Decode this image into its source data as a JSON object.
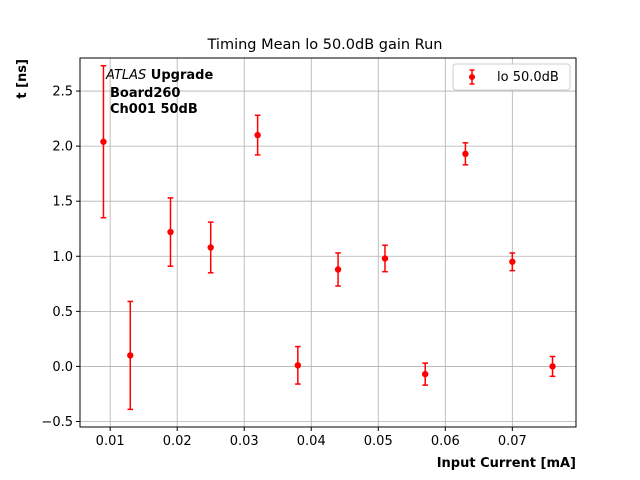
{
  "chart_data": {
    "type": "scatter",
    "title": "Timing Mean lo 50.0dB gain Run",
    "xlabel": "Input Current [mA]",
    "ylabel": "t [ns]",
    "xlim": [
      0.0055,
      0.0795
    ],
    "ylim": [
      -0.55,
      2.8
    ],
    "xticks": [
      0.01,
      0.02,
      0.03,
      0.04,
      0.05,
      0.06,
      0.07
    ],
    "xtick_labels": [
      "0.01",
      "0.02",
      "0.03",
      "0.04",
      "0.05",
      "0.06",
      "0.07"
    ],
    "yticks": [
      -0.5,
      0.0,
      0.5,
      1.0,
      1.5,
      2.0,
      2.5
    ],
    "ytick_labels": [
      "−0.5",
      "0.0",
      "0.5",
      "1.0",
      "1.5",
      "2.0",
      "2.5"
    ],
    "grid": true,
    "legend_position": "top-right",
    "annotation": {
      "line1_italic": "ATLAS",
      "line1_bold": " Upgrade",
      "line2": "Board260",
      "line3": "Ch001 50dB"
    },
    "series": [
      {
        "name": "lo 50.0dB",
        "color": "#ff0000",
        "x": [
          0.009,
          0.013,
          0.019,
          0.025,
          0.032,
          0.038,
          0.044,
          0.051,
          0.057,
          0.063,
          0.07,
          0.076
        ],
        "y": [
          2.04,
          0.1,
          1.22,
          1.08,
          2.1,
          0.01,
          0.88,
          0.98,
          -0.07,
          1.93,
          0.95,
          0.0
        ],
        "yerr": [
          0.69,
          0.49,
          0.31,
          0.23,
          0.18,
          0.17,
          0.15,
          0.12,
          0.1,
          0.1,
          0.08,
          0.09
        ]
      }
    ]
  }
}
